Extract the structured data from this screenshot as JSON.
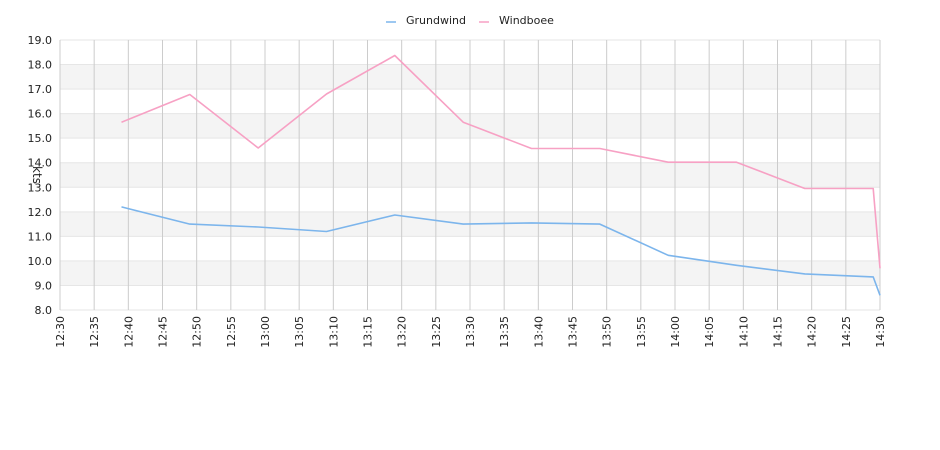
{
  "chart_data": {
    "type": "line",
    "title": "",
    "xlabel": "",
    "ylabel": "kts",
    "ylim": [
      8.0,
      19.0
    ],
    "yticks": [
      "8.0",
      "9.0",
      "10.0",
      "11.0",
      "12.0",
      "13.0",
      "14.0",
      "15.0",
      "16.0",
      "17.0",
      "18.0",
      "19.0"
    ],
    "xlim": [
      "12:30",
      "14:30"
    ],
    "xticks": [
      "12:30",
      "12:35",
      "12:40",
      "12:45",
      "12:50",
      "12:55",
      "13:00",
      "13:05",
      "13:10",
      "13:15",
      "13:20",
      "13:25",
      "13:30",
      "13:35",
      "13:40",
      "13:45",
      "13:50",
      "13:55",
      "14:00",
      "14:05",
      "14:10",
      "14:15",
      "14:20",
      "14:25",
      "14:30"
    ],
    "grid": true,
    "legend_position": "top-center",
    "series": [
      {
        "name": "Grundwind",
        "color": "#7cb5ec",
        "points": [
          [
            "12:39",
            12.2
          ],
          [
            "12:49",
            11.5
          ],
          [
            "12:59",
            11.38
          ],
          [
            "13:09",
            11.2
          ],
          [
            "13:19",
            11.87
          ],
          [
            "13:29",
            11.5
          ],
          [
            "13:39",
            11.55
          ],
          [
            "13:49",
            11.5
          ],
          [
            "13:59",
            10.23
          ],
          [
            "14:09",
            9.82
          ],
          [
            "14:19",
            9.47
          ],
          [
            "14:29",
            9.35
          ],
          [
            "14:30",
            8.6
          ]
        ]
      },
      {
        "name": "Windboee",
        "color": "#f7a1c4",
        "points": [
          [
            "12:39",
            15.65
          ],
          [
            "12:49",
            16.78
          ],
          [
            "12:59",
            14.6
          ],
          [
            "13:09",
            16.8
          ],
          [
            "13:19",
            18.37
          ],
          [
            "13:29",
            15.65
          ],
          [
            "13:39",
            14.58
          ],
          [
            "13:49",
            14.58
          ],
          [
            "13:59",
            14.02
          ],
          [
            "14:09",
            14.02
          ],
          [
            "14:19",
            12.95
          ],
          [
            "14:29",
            12.95
          ],
          [
            "14:30",
            9.7
          ]
        ]
      }
    ]
  }
}
